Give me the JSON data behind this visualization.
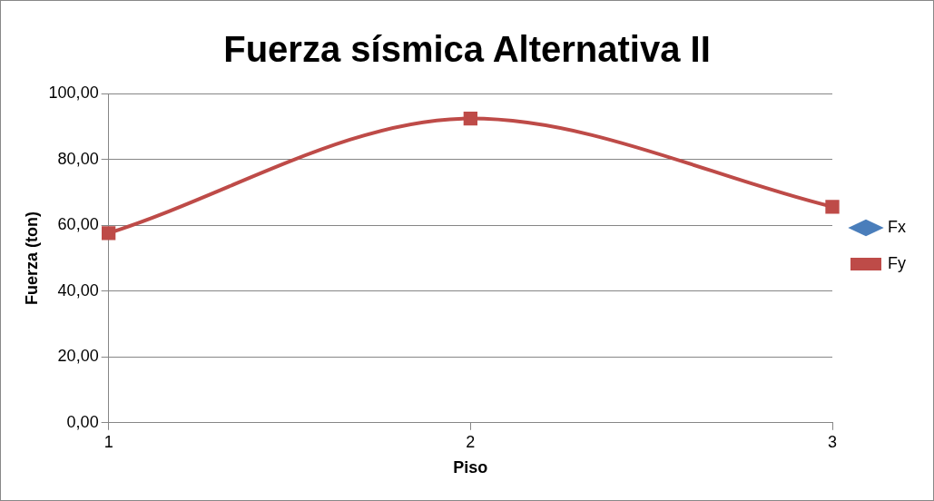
{
  "chart_data": {
    "type": "line",
    "title": "Fuerza sísmica Alternativa II",
    "xlabel": "Piso",
    "ylabel": "Fuerza (ton)",
    "categories": [
      "1",
      "2",
      "3"
    ],
    "series": [
      {
        "name": "Fx",
        "color": "#4a7ebb",
        "marker": "diamond",
        "values": [
          null,
          null,
          null
        ]
      },
      {
        "name": "Fy",
        "color": "#be4b48",
        "marker": "square",
        "values": [
          57.6,
          92.4,
          65.6
        ]
      }
    ],
    "ylim": [
      0,
      100
    ],
    "yticks": [
      {
        "value": 0,
        "label": "0,00"
      },
      {
        "value": 20,
        "label": "20,00"
      },
      {
        "value": 40,
        "label": "40,00"
      },
      {
        "value": 60,
        "label": "60,00"
      },
      {
        "value": 80,
        "label": "80,00"
      },
      {
        "value": 100,
        "label": "100,00"
      }
    ],
    "grid": "y",
    "legend": "right"
  }
}
